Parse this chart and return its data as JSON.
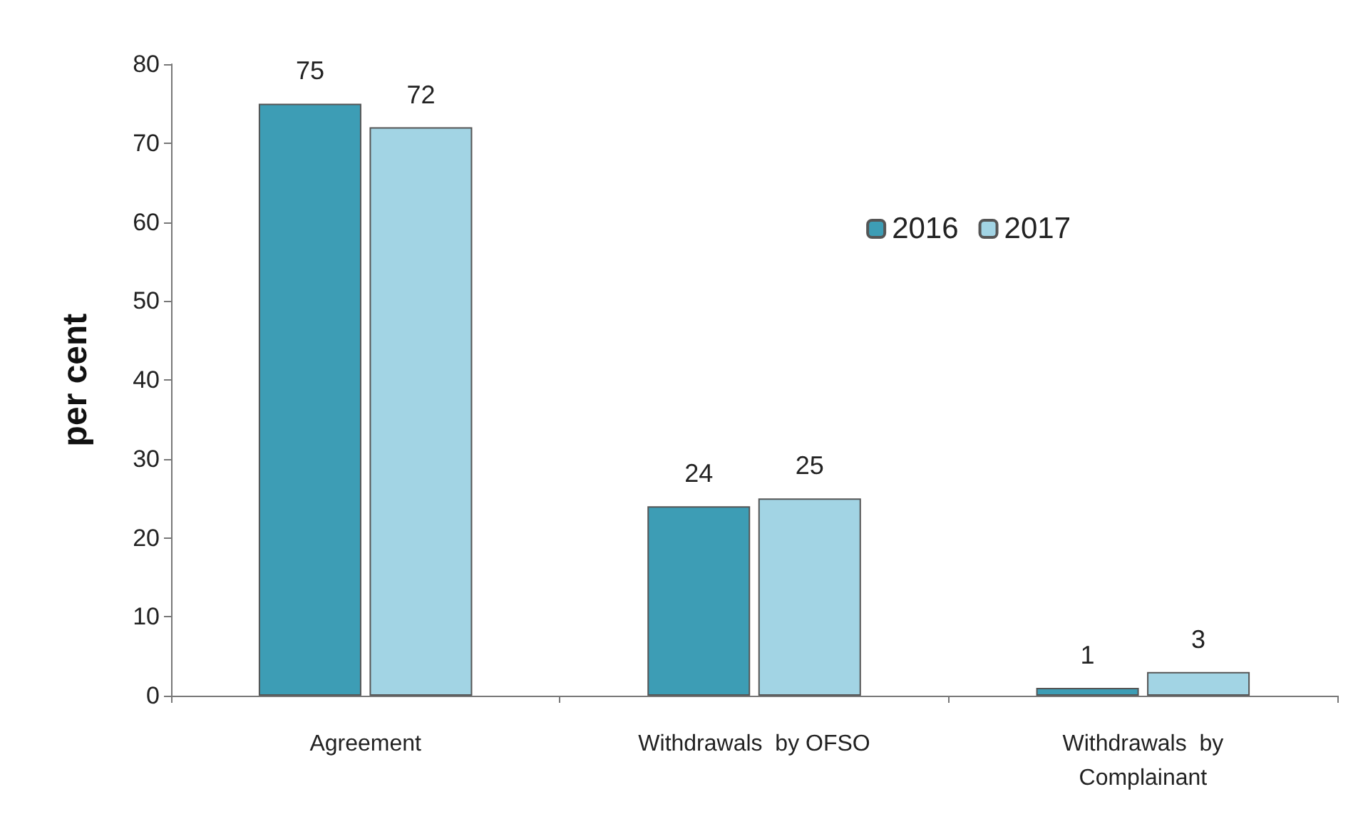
{
  "chart_data": {
    "type": "bar",
    "ylabel": "per cent",
    "categories": [
      "Agreement",
      "Withdrawals  by OFSO",
      "Withdrawals  by\nComplainant"
    ],
    "series": [
      {
        "name": "2016",
        "color": "#3d9db5",
        "values": [
          75,
          24,
          1
        ]
      },
      {
        "name": "2017",
        "color": "#a2d4e4",
        "values": [
          72,
          25,
          3
        ]
      }
    ],
    "ylim": [
      0,
      80
    ],
    "yticks": [
      0,
      10,
      20,
      30,
      40,
      50,
      60,
      70,
      80
    ],
    "data_labels": true,
    "legend": "top right",
    "grid": false
  }
}
